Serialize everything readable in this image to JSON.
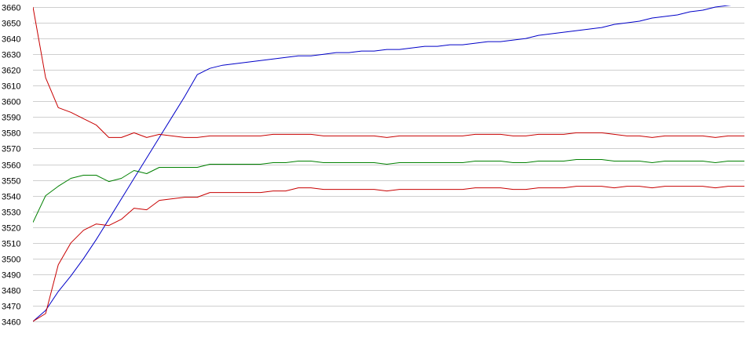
{
  "chart_data": {
    "type": "line",
    "title": "",
    "xlabel": "",
    "ylabel": "",
    "ylim": [
      3460,
      3660
    ],
    "yticks": [
      3460,
      3470,
      3480,
      3490,
      3500,
      3510,
      3520,
      3530,
      3540,
      3550,
      3560,
      3570,
      3580,
      3590,
      3600,
      3610,
      3620,
      3630,
      3640,
      3650,
      3660
    ],
    "grid": true,
    "legend": "none",
    "x": [
      1,
      2,
      3,
      4,
      5,
      6,
      7,
      8,
      9,
      10,
      11,
      12,
      13,
      14,
      15,
      16,
      17,
      18,
      19,
      20,
      21,
      22,
      23,
      24,
      25,
      26,
      27,
      28,
      29,
      30,
      31,
      32,
      33,
      34,
      35,
      36,
      37,
      38,
      39,
      40,
      41,
      42,
      43,
      44,
      45,
      46,
      47,
      48,
      49,
      50,
      51,
      52,
      53,
      54,
      55,
      56,
      57,
      58,
      59,
      60
    ],
    "series": [
      {
        "color": "#0000c8",
        "values": [
          3460,
          3467,
          3479,
          3489,
          3500,
          3512,
          3525,
          3538,
          3551,
          3564,
          3577,
          3590,
          3603,
          3617,
          3621,
          3623,
          3624,
          3625,
          3626,
          3627,
          3628,
          3629,
          3629,
          3630,
          3631,
          3631,
          3632,
          3632,
          3633,
          3633,
          3634,
          3635,
          3635,
          3636,
          3636,
          3637,
          3638,
          3638,
          3639,
          3640,
          3642,
          3643,
          3644,
          3645,
          3646,
          3647,
          3649,
          3650,
          3651,
          3653,
          3654,
          3655,
          3657,
          3658,
          3660,
          3661,
          3662,
          3663,
          3664,
          3665
        ]
      },
      {
        "color": "#c80000",
        "values": [
          3660,
          3615,
          3596,
          3593,
          3589,
          3585,
          3577,
          3577,
          3580,
          3577,
          3579,
          3578,
          3577,
          3577,
          3578,
          3578,
          3578,
          3578,
          3578,
          3579,
          3579,
          3579,
          3579,
          3578,
          3578,
          3578,
          3578,
          3578,
          3577,
          3578,
          3578,
          3578,
          3578,
          3578,
          3578,
          3579,
          3579,
          3579,
          3578,
          3578,
          3579,
          3579,
          3579,
          3580,
          3580,
          3580,
          3579,
          3578,
          3578,
          3577,
          3578,
          3578,
          3578,
          3578,
          3577,
          3578,
          3578,
          3578,
          3578,
          3578
        ]
      },
      {
        "color": "#008000",
        "values": [
          3523,
          3540,
          3546,
          3551,
          3553,
          3553,
          3549,
          3551,
          3556,
          3554,
          3558,
          3558,
          3558,
          3558,
          3560,
          3560,
          3560,
          3560,
          3560,
          3561,
          3561,
          3562,
          3562,
          3561,
          3561,
          3561,
          3561,
          3561,
          3560,
          3561,
          3561,
          3561,
          3561,
          3561,
          3561,
          3562,
          3562,
          3562,
          3561,
          3561,
          3562,
          3562,
          3562,
          3563,
          3563,
          3563,
          3562,
          3562,
          3562,
          3561,
          3562,
          3562,
          3562,
          3562,
          3561,
          3562,
          3562,
          3562,
          3562,
          3562
        ]
      },
      {
        "color": "#c80000",
        "values": [
          3460,
          3465,
          3496,
          3510,
          3518,
          3522,
          3521,
          3525,
          3532,
          3531,
          3537,
          3538,
          3539,
          3539,
          3542,
          3542,
          3542,
          3542,
          3542,
          3543,
          3543,
          3545,
          3545,
          3544,
          3544,
          3544,
          3544,
          3544,
          3543,
          3544,
          3544,
          3544,
          3544,
          3544,
          3544,
          3545,
          3545,
          3545,
          3544,
          3544,
          3545,
          3545,
          3545,
          3546,
          3546,
          3546,
          3545,
          3546,
          3546,
          3545,
          3546,
          3546,
          3546,
          3546,
          3545,
          3546,
          3546,
          3546,
          3546,
          3546
        ]
      }
    ]
  }
}
